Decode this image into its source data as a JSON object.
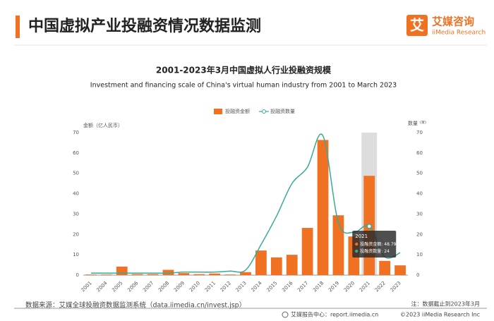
{
  "header": {
    "title": "中国虚拟产业投融资情况数据监测",
    "logo_mark": "艾",
    "logo_text": "艾媒咨询",
    "logo_sub": "iiMedia Research"
  },
  "chart_data": {
    "type": "bar",
    "title": "2001-2023年3月中国虚拟人行业投融资规模",
    "subtitle": "Investment and financing scale of China's virtual human industry from 2001 to March 2023",
    "categories": [
      "2001",
      "2004",
      "2005",
      "2006",
      "2007",
      "2008",
      "2009",
      "2010",
      "2011",
      "2012",
      "2013",
      "2014",
      "2015",
      "2016",
      "2017",
      "2018",
      "2019",
      "2020",
      "2021",
      "2022",
      "2023"
    ],
    "series": [
      {
        "name": "投融资金额",
        "color": "#f07122",
        "values": [
          0.3,
          0.3,
          4.2,
          0.5,
          0.5,
          2.6,
          1,
          0.5,
          0.8,
          0.3,
          1.5,
          12.1,
          8.7,
          10,
          23.2,
          66.4,
          29.4,
          19,
          48.79,
          7,
          4.8
        ]
      },
      {
        "name": "投融资数量",
        "type": "line",
        "axis": "y2",
        "color": "#3aa99a",
        "values": [
          1,
          1,
          1,
          1,
          1,
          1,
          1.5,
          1.5,
          1.5,
          2,
          2.5,
          15,
          29,
          45,
          53,
          68.5,
          26,
          21,
          24,
          9,
          11
        ]
      }
    ],
    "ylim": [
      0,
      70
    ],
    "yticks": [
      0,
      10,
      20,
      30,
      40,
      50,
      60,
      70
    ],
    "y2lim": [
      0,
      70
    ],
    "y2ticks": [
      0,
      10,
      20,
      30,
      40,
      50,
      60,
      70
    ],
    "y_label": "金额（亿人民币）",
    "y2_label": "数量",
    "y2_unit": "(家)",
    "legend": "top",
    "tooltip_separator": ":"
  },
  "footer": {
    "source": "数据来源：艾媒全球投融资数据监测系统（data.iimedia.cn/invest.jsp）",
    "note": "注：数据截止到2023年3月",
    "report_center": "艾媒报告中心：report.iimedia.cn",
    "copyright": "©2023  iiMedia Research  Inc"
  }
}
